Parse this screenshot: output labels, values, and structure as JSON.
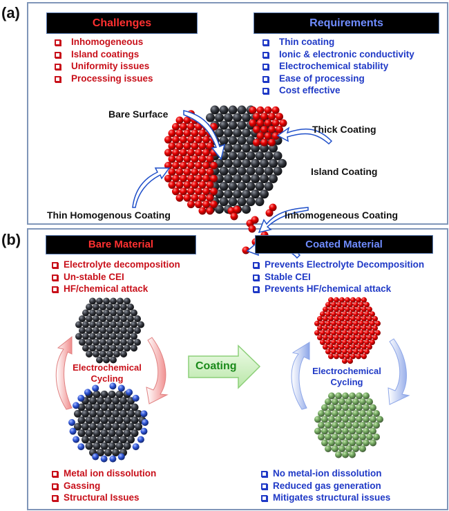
{
  "panel_a": {
    "label": "(a)",
    "challenges": {
      "title": "Challenges",
      "items": [
        "Inhomogeneous",
        "Island coatings",
        "Uniformity issues",
        "Processing issues"
      ]
    },
    "requirements": {
      "title": "Requirements",
      "items": [
        "Thin coating",
        "Ionic & electronic conductivity",
        "Electrochemical stability",
        "Ease of processing",
        "Cost effective"
      ]
    },
    "annotations": {
      "bare_surface": "Bare Surface",
      "thick_coating": "Thick Coating",
      "island_coating": "Island Coating",
      "thin_homogenous": "Thin Homogenous Coating",
      "inhomogeneous_coating": "Inhomogeneous Coating"
    }
  },
  "panel_b": {
    "label": "(b)",
    "bare": {
      "title": "Bare Material",
      "top_items": [
        "Electrolyte decomposition",
        "Un-stable CEI",
        "HF/chemical attack"
      ],
      "bottom_items": [
        "Metal ion dissolution",
        "Gassing",
        "Structural Issues"
      ],
      "cycle_label_1": "Electrochemical",
      "cycle_label_2": "Cycling"
    },
    "coating_arrow": "Coating",
    "coated": {
      "title": "Coated Material",
      "top_items": [
        "Prevents Electrolyte Decomposition",
        "Stable CEI",
        "Prevents HF/chemical attack"
      ],
      "bottom_items": [
        "No metal-ion dissolution",
        "Reduced gas generation",
        "Mitigates structural issues"
      ],
      "cycle_label_1": "Electrochemical",
      "cycle_label_2": "Cycling"
    }
  },
  "colors": {
    "challenge_red": "#c8101a",
    "requirement_blue": "#1f39c6",
    "coating_green": "#1a8a1a",
    "coating_shell": "#e00000",
    "core_dark": "#2a2d33",
    "dissolved_blue": "#2f56d6"
  }
}
